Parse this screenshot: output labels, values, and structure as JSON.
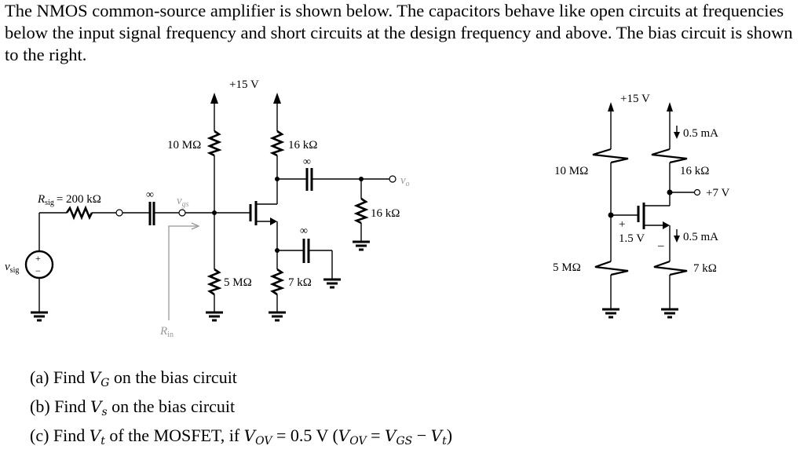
{
  "problem": {
    "intro": "The NMOS common-source amplifier is shown below. The capacitors behave like open circuits at frequencies below the input signal frequency and short circuits at the design frequency and above. The bias circuit is shown to the right."
  },
  "amplifier": {
    "supply": "+15 V",
    "r_g1": "10 MΩ",
    "r_g2": "5 MΩ",
    "r_d": "16 kΩ",
    "r_s": "7 kΩ",
    "r_l": "16 kΩ",
    "r_sig_sym": "R",
    "r_sig_sub": "sig",
    "r_sig_val": "= 200 kΩ",
    "cap_c1": "∞",
    "cap_c2": "∞",
    "cap_cs": "∞",
    "v_gs_sym": "v",
    "v_gs_sub": "gs",
    "v_o_sym": "v",
    "v_o_sub": "o",
    "v_sig_sym": "v",
    "v_sig_sub": "sig",
    "r_in_sym": "R",
    "r_in_sub": "in",
    "source_plus": "+",
    "source_minus": "−"
  },
  "bias": {
    "supply": "+15 V",
    "r_g1": "10 MΩ",
    "r_g2": "5 MΩ",
    "r_d": "16 kΩ",
    "r_s": "7 kΩ",
    "i_d": "0.5 mA",
    "i_s": "0.5 mA",
    "v_d": "+7 V",
    "v_gs": "1.5 V",
    "plus": "+",
    "minus": "_"
  },
  "questions": [
    {
      "label": "(a) Find ",
      "var": "V",
      "sub": "G",
      "rest": " on the bias circuit"
    },
    {
      "label": "(b) Find ",
      "var": "V",
      "sub": "s",
      "rest": " on the bias circuit"
    },
    {
      "label": "(c) Find ",
      "var": "V",
      "sub": "t",
      "rest": " of the MOSFET, if ",
      "v1": "V",
      "s1": "OV",
      "t1": " = 0.5 V (",
      "v2": "V",
      "s2": "OV",
      "t2": " = ",
      "v3": "V",
      "s3": "GS",
      "t3": " − ",
      "v4": "V",
      "s4": "t",
      "t4": ")"
    }
  ]
}
